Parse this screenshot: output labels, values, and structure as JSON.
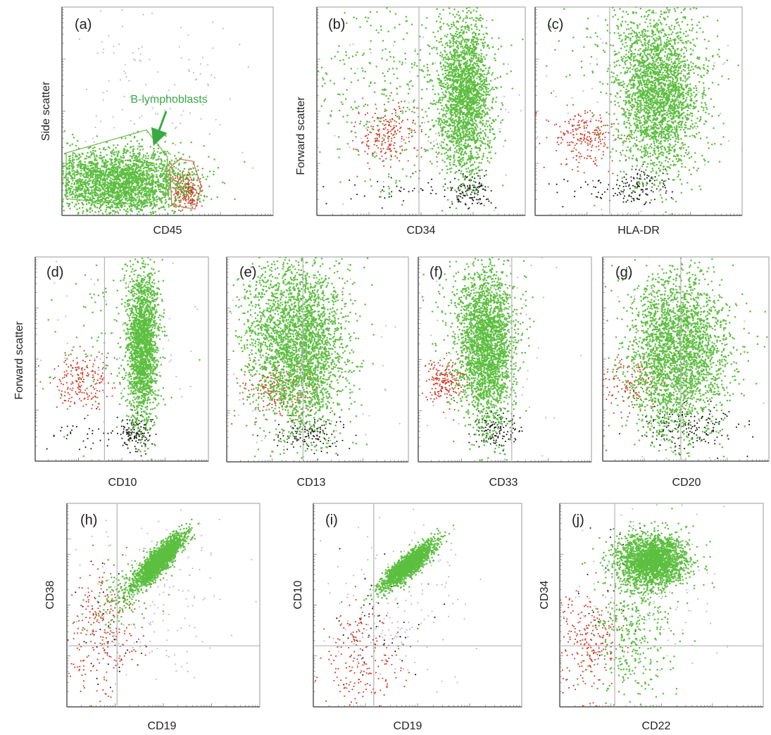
{
  "colors": {
    "blast": "#5cbf3f",
    "blast_gate": "#6ab84a",
    "lymph": "#d23a24",
    "lymph_gate": "#d46a5c",
    "debris": "#1a1a1a",
    "other": "#b8b8c8",
    "axis": "#555555",
    "quad_line": "#b5b5b5",
    "annotation": "#3aaa45"
  },
  "chart_data": [
    {
      "panel": "(a)",
      "type": "scatter",
      "xlabel": "CD45",
      "ylabel": "Side scatter",
      "xlim": [
        0,
        1
      ],
      "ylim": [
        0,
        1
      ],
      "grid": false,
      "annotation": "B-lymphoblasts",
      "populations": [
        {
          "pop": "blast",
          "x": [
            0.28,
            0.16
          ],
          "y": [
            0.16,
            0.08
          ],
          "n": 2600
        },
        {
          "pop": "lymph",
          "x": [
            0.59,
            0.035
          ],
          "y": [
            0.12,
            0.05
          ],
          "n": 230
        },
        {
          "pop": "other",
          "x": [
            0.45,
            0.24
          ],
          "y": [
            0.55,
            0.28
          ],
          "n": 160
        }
      ],
      "gates": [
        {
          "pop": "blast",
          "points": [
            [
              0.02,
              0.3
            ],
            [
              0.4,
              0.41
            ],
            [
              0.5,
              0.28
            ],
            [
              0.49,
              0.09
            ],
            [
              0.38,
              0.05
            ],
            [
              0.02,
              0.08
            ]
          ]
        },
        {
          "pop": "lymph",
          "points": [
            [
              0.51,
              0.23
            ],
            [
              0.56,
              0.27
            ],
            [
              0.62,
              0.26
            ],
            [
              0.66,
              0.14
            ],
            [
              0.63,
              0.03
            ],
            [
              0.52,
              0.05
            ]
          ]
        }
      ]
    },
    {
      "panel": "(b)",
      "type": "scatter",
      "xlabel": "CD34",
      "ylabel": "Forward scatter",
      "xlim": [
        0,
        1
      ],
      "ylim": [
        0,
        1
      ],
      "quad_x": 0.49,
      "populations": [
        {
          "pop": "blast",
          "x": [
            0.71,
            0.065
          ],
          "y": [
            0.57,
            0.19
          ],
          "n": 2200
        },
        {
          "pop": "blast",
          "x": [
            0.38,
            0.22
          ],
          "y": [
            0.57,
            0.24
          ],
          "n": 350
        },
        {
          "pop": "lymph",
          "x": [
            0.34,
            0.075
          ],
          "y": [
            0.38,
            0.065
          ],
          "n": 220
        },
        {
          "pop": "debris",
          "x": [
            0.74,
            0.045
          ],
          "y": [
            0.12,
            0.045
          ],
          "n": 120
        },
        {
          "pop": "debris",
          "x": [
            0.45,
            0.17
          ],
          "y": [
            0.12,
            0.035
          ],
          "n": 45
        },
        {
          "pop": "other",
          "x": [
            0.6,
            0.25
          ],
          "y": [
            0.55,
            0.3
          ],
          "n": 90
        }
      ]
    },
    {
      "panel": "(c)",
      "type": "scatter",
      "xlabel": "HLA-DR",
      "ylabel": "",
      "xlim": [
        0,
        1
      ],
      "ylim": [
        0,
        1
      ],
      "quad_x": 0.36,
      "populations": [
        {
          "pop": "blast",
          "x": [
            0.6,
            0.1
          ],
          "y": [
            0.58,
            0.19
          ],
          "n": 2400
        },
        {
          "pop": "blast",
          "x": [
            0.48,
            0.16
          ],
          "y": [
            0.8,
            0.14
          ],
          "n": 250
        },
        {
          "pop": "lymph",
          "x": [
            0.24,
            0.085
          ],
          "y": [
            0.37,
            0.07
          ],
          "n": 220
        },
        {
          "pop": "debris",
          "x": [
            0.52,
            0.06
          ],
          "y": [
            0.14,
            0.04
          ],
          "n": 110
        },
        {
          "pop": "debris",
          "x": [
            0.3,
            0.14
          ],
          "y": [
            0.12,
            0.035
          ],
          "n": 40
        },
        {
          "pop": "other",
          "x": [
            0.55,
            0.28
          ],
          "y": [
            0.55,
            0.32
          ],
          "n": 100
        }
      ]
    },
    {
      "panel": "(d)",
      "type": "scatter",
      "xlabel": "CD10",
      "ylabel": "Forward scatter",
      "xlim": [
        0,
        1
      ],
      "ylim": [
        0,
        1
      ],
      "quad_x": 0.4,
      "populations": [
        {
          "pop": "blast",
          "x": [
            0.62,
            0.045
          ],
          "y": [
            0.57,
            0.19
          ],
          "n": 2000
        },
        {
          "pop": "blast",
          "x": [
            0.4,
            0.2
          ],
          "y": [
            0.6,
            0.25
          ],
          "n": 100
        },
        {
          "pop": "lymph",
          "x": [
            0.26,
            0.085
          ],
          "y": [
            0.39,
            0.065
          ],
          "n": 200
        },
        {
          "pop": "debris",
          "x": [
            0.59,
            0.04
          ],
          "y": [
            0.14,
            0.045
          ],
          "n": 130
        },
        {
          "pop": "debris",
          "x": [
            0.3,
            0.16
          ],
          "y": [
            0.12,
            0.04
          ],
          "n": 40
        },
        {
          "pop": "other",
          "x": [
            0.55,
            0.25
          ],
          "y": [
            0.55,
            0.3
          ],
          "n": 70
        }
      ]
    },
    {
      "panel": "(e)",
      "type": "scatter",
      "xlabel": "CD13",
      "ylabel": "",
      "xlim": [
        0,
        1
      ],
      "ylim": [
        0,
        1
      ],
      "quad_x": 0.42,
      "populations": [
        {
          "pop": "blast",
          "x": [
            0.4,
            0.13
          ],
          "y": [
            0.55,
            0.21
          ],
          "n": 2600
        },
        {
          "pop": "blast",
          "x": [
            0.28,
            0.15
          ],
          "y": [
            0.72,
            0.16
          ],
          "n": 300
        },
        {
          "pop": "lymph",
          "x": [
            0.28,
            0.11
          ],
          "y": [
            0.36,
            0.07
          ],
          "n": 220
        },
        {
          "pop": "debris",
          "x": [
            0.44,
            0.09
          ],
          "y": [
            0.14,
            0.045
          ],
          "n": 140
        },
        {
          "pop": "other",
          "x": [
            0.45,
            0.28
          ],
          "y": [
            0.55,
            0.3
          ],
          "n": 90
        }
      ]
    },
    {
      "panel": "(f)",
      "type": "scatter",
      "xlabel": "CD33",
      "ylabel": "",
      "xlim": [
        0,
        1
      ],
      "ylim": [
        0,
        1
      ],
      "quad_x": 0.54,
      "populations": [
        {
          "pop": "blast",
          "x": [
            0.4,
            0.08
          ],
          "y": [
            0.56,
            0.2
          ],
          "n": 2300
        },
        {
          "pop": "blast",
          "x": [
            0.3,
            0.13
          ],
          "y": [
            0.72,
            0.18
          ],
          "n": 250
        },
        {
          "pop": "lymph",
          "x": [
            0.16,
            0.06
          ],
          "y": [
            0.39,
            0.055
          ],
          "n": 200
        },
        {
          "pop": "debris",
          "x": [
            0.45,
            0.07
          ],
          "y": [
            0.15,
            0.045
          ],
          "n": 130
        },
        {
          "pop": "other",
          "x": [
            0.45,
            0.28
          ],
          "y": [
            0.55,
            0.3
          ],
          "n": 80
        }
      ]
    },
    {
      "panel": "(g)",
      "type": "scatter",
      "xlabel": "CD20",
      "ylabel": "",
      "xlim": [
        0,
        1
      ],
      "ylim": [
        0,
        1
      ],
      "quad_x": 0.47,
      "populations": [
        {
          "pop": "blast",
          "x": [
            0.45,
            0.15
          ],
          "y": [
            0.54,
            0.2
          ],
          "n": 2700
        },
        {
          "pop": "lymph",
          "x": [
            0.2,
            0.12
          ],
          "y": [
            0.38,
            0.07
          ],
          "n": 160
        },
        {
          "pop": "debris",
          "x": [
            0.54,
            0.16
          ],
          "y": [
            0.17,
            0.06
          ],
          "n": 160
        },
        {
          "pop": "other",
          "x": [
            0.45,
            0.3
          ],
          "y": [
            0.55,
            0.3
          ],
          "n": 80
        }
      ]
    },
    {
      "panel": "(h)",
      "type": "scatter",
      "xlabel": "CD19",
      "ylabel": "CD38",
      "xlim": [
        0,
        1
      ],
      "ylim": [
        0,
        1
      ],
      "quad_x": 0.26,
      "quad_y": 0.3,
      "populations": [
        {
          "pop": "blast",
          "x": [
            0.48,
            0.06
          ],
          "y": [
            0.72,
            0.06
          ],
          "n": 2000,
          "corr": 0.85
        },
        {
          "pop": "blast",
          "x": [
            0.32,
            0.1
          ],
          "y": [
            0.58,
            0.1
          ],
          "n": 200,
          "corr": 0.7
        },
        {
          "pop": "lymph",
          "x": [
            0.18,
            0.1
          ],
          "y": [
            0.38,
            0.16
          ],
          "n": 260
        },
        {
          "pop": "debris",
          "x": [
            0.22,
            0.08
          ],
          "y": [
            0.4,
            0.18
          ],
          "n": 40
        },
        {
          "pop": "other",
          "x": [
            0.45,
            0.2
          ],
          "y": [
            0.55,
            0.22
          ],
          "n": 160
        }
      ]
    },
    {
      "panel": "(i)",
      "type": "scatter",
      "xlabel": "CD19",
      "ylabel": "CD10",
      "xlim": [
        0,
        1
      ],
      "ylim": [
        0,
        1
      ],
      "quad_x": 0.29,
      "quad_y": 0.3,
      "populations": [
        {
          "pop": "blast",
          "x": [
            0.46,
            0.06
          ],
          "y": [
            0.7,
            0.055
          ],
          "n": 1800,
          "corr": 0.85
        },
        {
          "pop": "lymph",
          "x": [
            0.22,
            0.11
          ],
          "y": [
            0.25,
            0.14
          ],
          "n": 200
        },
        {
          "pop": "debris",
          "x": [
            0.3,
            0.1
          ],
          "y": [
            0.4,
            0.2
          ],
          "n": 50
        },
        {
          "pop": "other",
          "x": [
            0.42,
            0.18
          ],
          "y": [
            0.5,
            0.2
          ],
          "n": 160
        }
      ]
    },
    {
      "panel": "(j)",
      "type": "scatter",
      "xlabel": "CD22",
      "ylabel": "CD34",
      "xlim": [
        0,
        1
      ],
      "ylim": [
        0,
        1
      ],
      "quad_x": 0.27,
      "quad_y": 0.3,
      "populations": [
        {
          "pop": "blast",
          "x": [
            0.46,
            0.085
          ],
          "y": [
            0.72,
            0.065
          ],
          "n": 2200
        },
        {
          "pop": "blast",
          "x": [
            0.36,
            0.09
          ],
          "y": [
            0.4,
            0.2
          ],
          "n": 400
        },
        {
          "pop": "lymph",
          "x": [
            0.15,
            0.08
          ],
          "y": [
            0.32,
            0.13
          ],
          "n": 240
        },
        {
          "pop": "debris",
          "x": [
            0.3,
            0.1
          ],
          "y": [
            0.6,
            0.2
          ],
          "n": 30
        },
        {
          "pop": "other",
          "x": [
            0.45,
            0.2
          ],
          "y": [
            0.6,
            0.22
          ],
          "n": 140
        }
      ]
    }
  ]
}
